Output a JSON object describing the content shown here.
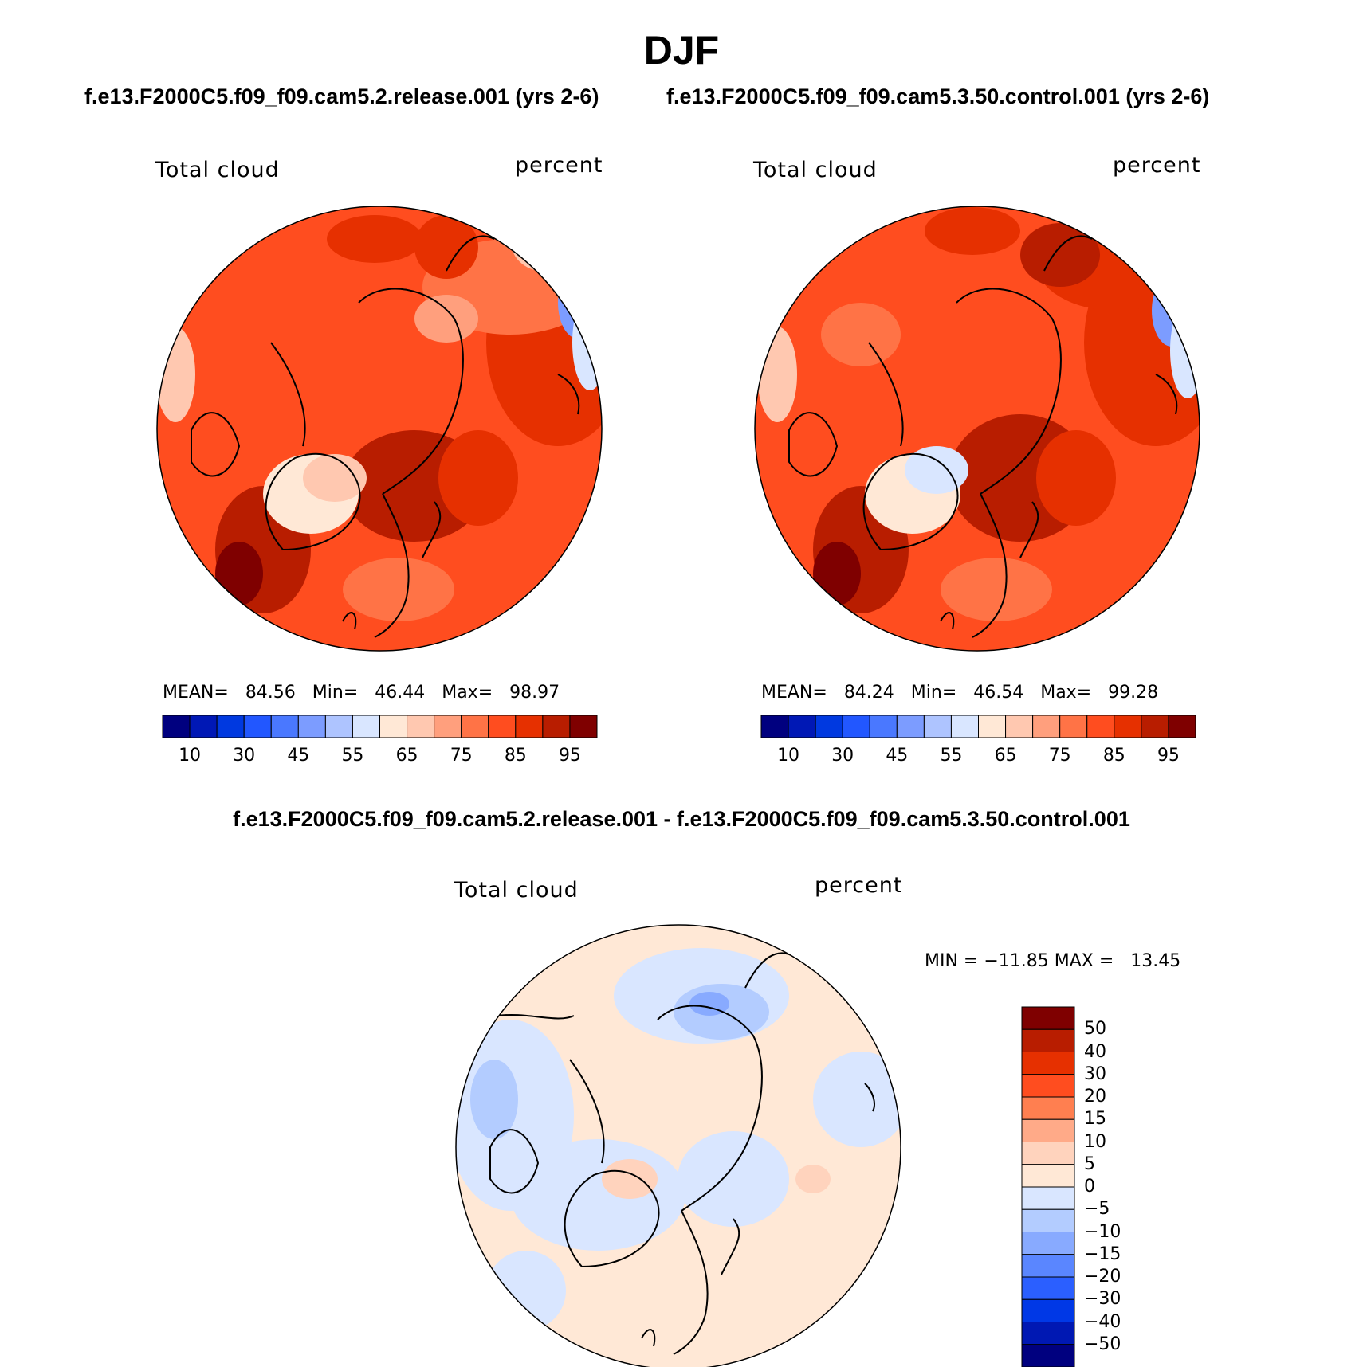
{
  "title": "DJF",
  "panels": [
    {
      "id": "left",
      "case": "f.e13.F2000C5.f09_f09.cam5.2.release.001 (yrs 2-6)",
      "variable": "Total cloud",
      "units": "percent",
      "stats": {
        "mean_label": "MEAN=",
        "mean": "84.56",
        "min_label": "Min=",
        "min": "46.44",
        "max_label": "Max=",
        "max": "98.97"
      }
    },
    {
      "id": "right",
      "case": "f.e13.F2000C5.f09_f09.cam5.3.50.control.001 (yrs 2-6)",
      "variable": "Total cloud",
      "units": "percent",
      "stats": {
        "mean_label": "MEAN=",
        "mean": "84.24",
        "min_label": "Min=",
        "min": "46.54",
        "max_label": "Max=",
        "max": "99.28"
      }
    }
  ],
  "abs_colorbar": {
    "colors": [
      "#00007f",
      "#0018b5",
      "#0039e0",
      "#2257ff",
      "#4a78ff",
      "#7c9cff",
      "#aec4ff",
      "#d9e6ff",
      "#ffe8d6",
      "#ffc8b0",
      "#ff9f7d",
      "#ff7346",
      "#ff4d1f",
      "#e63000",
      "#b81d00",
      "#7f0000"
    ],
    "tick_labels": [
      "10",
      "30",
      "45",
      "55",
      "65",
      "75",
      "85",
      "95"
    ]
  },
  "diff_panel": {
    "title": "f.e13.F2000C5.f09_f09.cam5.2.release.001 - f.e13.F2000C5.f09_f09.cam5.3.50.control.001",
    "variable": "Total cloud",
    "units": "percent",
    "minmax": "MIN = −11.85 MAX =   13.45",
    "colorbar": {
      "colors_top_to_bottom": [
        "#7f0000",
        "#b81d00",
        "#e63000",
        "#ff4d1f",
        "#ff7f50",
        "#ffaa88",
        "#ffd3bd",
        "#ffe8d6",
        "#d9e6ff",
        "#b3ccff",
        "#88aaff",
        "#5a86ff",
        "#2b5fff",
        "#0038e6",
        "#0018b3",
        "#00007f"
      ],
      "tick_labels": [
        "50",
        "40",
        "30",
        "20",
        "15",
        "10",
        "5",
        "0",
        "−5",
        "−10",
        "−15",
        "−20",
        "−30",
        "−40",
        "−50"
      ]
    }
  }
}
